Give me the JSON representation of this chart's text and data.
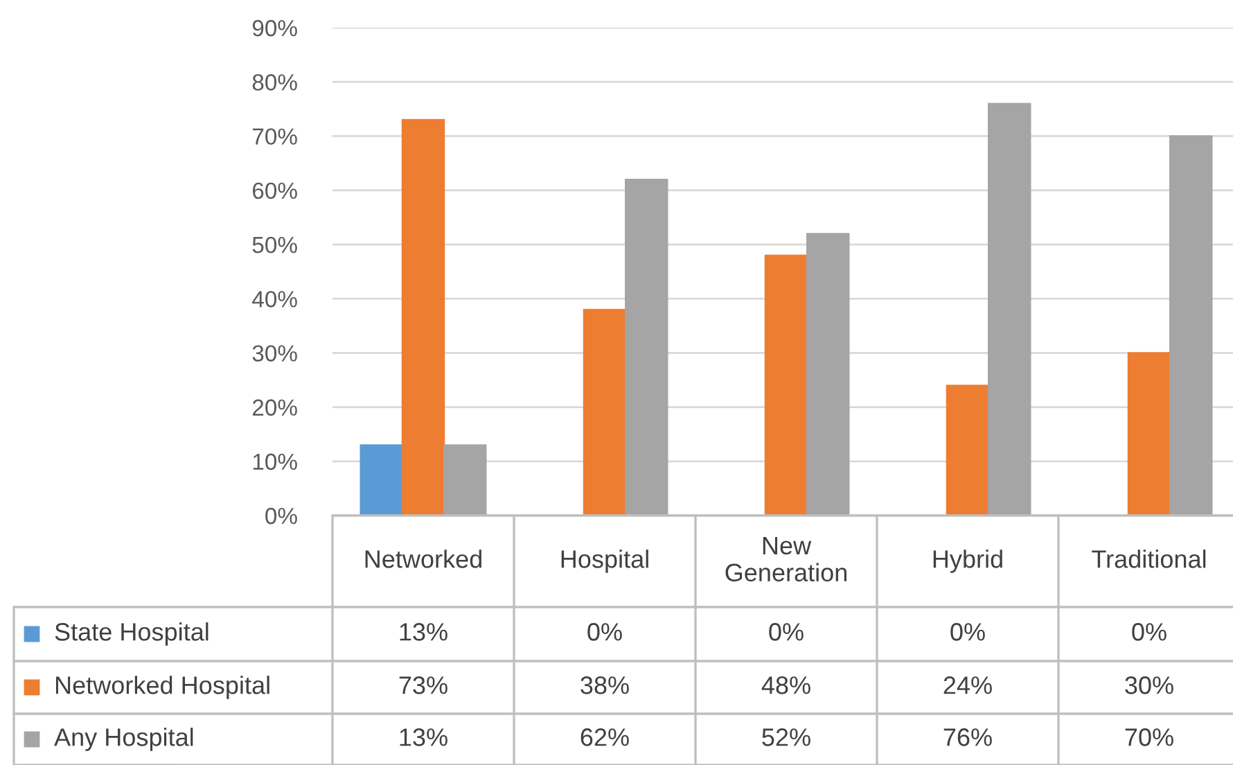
{
  "chart_data": {
    "type": "bar",
    "categories": [
      "Networked",
      "Hospital",
      "New\nGeneration",
      "Hybrid",
      "Traditional"
    ],
    "series": [
      {
        "name": "State Hospital",
        "color": "#5b9bd5",
        "values": [
          13,
          0,
          0,
          0,
          0
        ],
        "value_labels": [
          "13%",
          "0%",
          "0%",
          "0%",
          "0%"
        ]
      },
      {
        "name": "Networked Hospital",
        "color": "#ed7d31",
        "values": [
          73,
          38,
          48,
          24,
          30
        ],
        "value_labels": [
          "73%",
          "38%",
          "48%",
          "24%",
          "30%"
        ]
      },
      {
        "name": "Any Hospital",
        "color": "#a5a5a5",
        "values": [
          13,
          62,
          52,
          76,
          70
        ],
        "value_labels": [
          "13%",
          "62%",
          "52%",
          "76%",
          "70%"
        ]
      }
    ],
    "ylim": [
      0,
      90
    ],
    "yticks": [
      {
        "value": 0,
        "label": "0%"
      },
      {
        "value": 10,
        "label": "10%"
      },
      {
        "value": 20,
        "label": "20%"
      },
      {
        "value": 30,
        "label": "30%"
      },
      {
        "value": 40,
        "label": "40%"
      },
      {
        "value": 50,
        "label": "50%"
      },
      {
        "value": 60,
        "label": "60%"
      },
      {
        "value": 70,
        "label": "70%"
      },
      {
        "value": 80,
        "label": "80%"
      },
      {
        "value": 90,
        "label": "90%"
      }
    ],
    "grid": "y",
    "legend": "bottom"
  }
}
